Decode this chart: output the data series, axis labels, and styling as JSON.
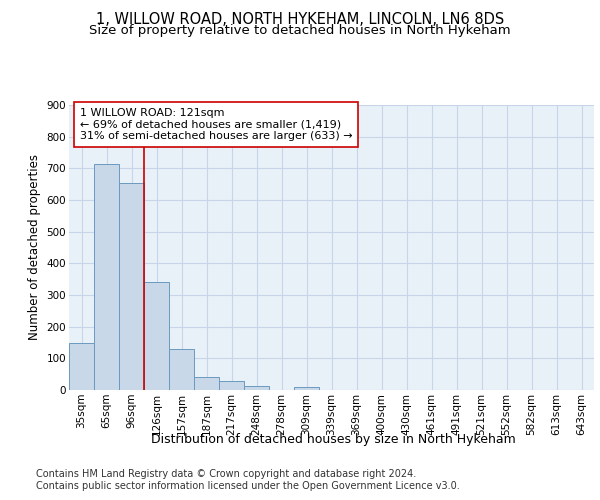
{
  "title1": "1, WILLOW ROAD, NORTH HYKEHAM, LINCOLN, LN6 8DS",
  "title2": "Size of property relative to detached houses in North Hykeham",
  "xlabel": "Distribution of detached houses by size in North Hykeham",
  "ylabel": "Number of detached properties",
  "categories": [
    "35sqm",
    "65sqm",
    "96sqm",
    "126sqm",
    "157sqm",
    "187sqm",
    "217sqm",
    "248sqm",
    "278sqm",
    "309sqm",
    "339sqm",
    "369sqm",
    "400sqm",
    "430sqm",
    "461sqm",
    "491sqm",
    "521sqm",
    "552sqm",
    "582sqm",
    "613sqm",
    "643sqm"
  ],
  "values": [
    150,
    715,
    655,
    340,
    128,
    42,
    30,
    12,
    0,
    8,
    0,
    0,
    0,
    0,
    0,
    0,
    0,
    0,
    0,
    0,
    0
  ],
  "bar_color": "#c8d8e8",
  "bar_edge_color": "#6a9abf",
  "vline_x": 2.5,
  "vline_color": "#cc0000",
  "annotation_text": "1 WILLOW ROAD: 121sqm\n← 69% of detached houses are smaller (1,419)\n31% of semi-detached houses are larger (633) →",
  "annotation_box_color": "#ffffff",
  "annotation_box_edge_color": "#cc0000",
  "ylim": [
    0,
    900
  ],
  "yticks": [
    0,
    100,
    200,
    300,
    400,
    500,
    600,
    700,
    800,
    900
  ],
  "footer1": "Contains HM Land Registry data © Crown copyright and database right 2024.",
  "footer2": "Contains public sector information licensed under the Open Government Licence v3.0.",
  "background_color": "#ffffff",
  "plot_bg_color": "#e8f0f8",
  "grid_color": "#c8d4e8",
  "title1_fontsize": 10.5,
  "title2_fontsize": 9.5,
  "ylabel_fontsize": 8.5,
  "xlabel_fontsize": 9,
  "tick_fontsize": 7.5,
  "annotation_fontsize": 8,
  "footer_fontsize": 7
}
